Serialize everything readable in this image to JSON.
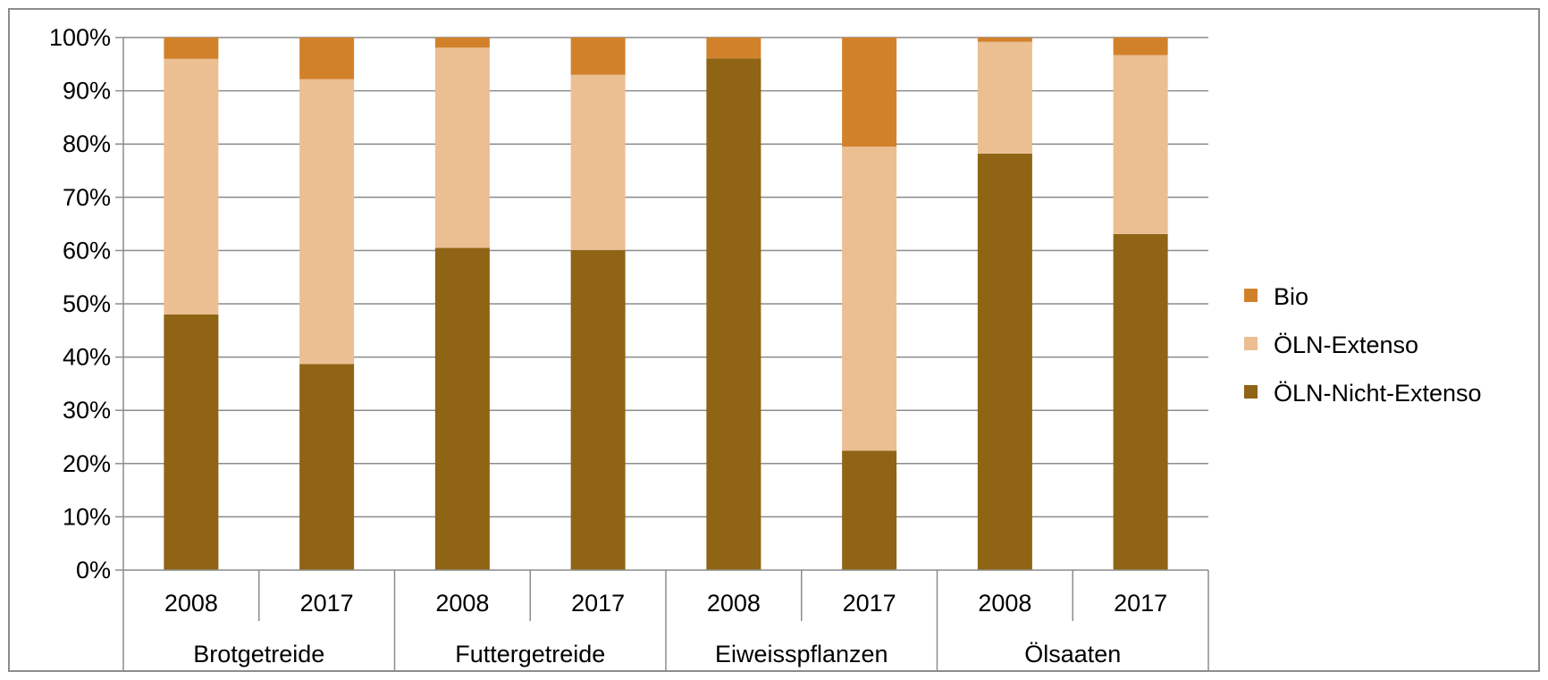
{
  "chart_data": {
    "type": "bar",
    "stacked": true,
    "percent_stacked": true,
    "x_year_labels": [
      "2008",
      "2017",
      "2008",
      "2017",
      "2008",
      "2017",
      "2008",
      "2017"
    ],
    "groups": [
      "Brotgetreide",
      "Futtergetreide",
      "Eiweisspflanzen",
      "Ölsaaten"
    ],
    "ylim": [
      0,
      100
    ],
    "y_ticks": [
      "0%",
      "10%",
      "20%",
      "30%",
      "40%",
      "50%",
      "60%",
      "70%",
      "80%",
      "90%",
      "100%"
    ],
    "grid": true,
    "legend_position": "right",
    "series": [
      {
        "name": "ÖLN-Nicht-Extenso",
        "color": "#8f6415",
        "values": [
          48,
          38.7,
          60.5,
          60.1,
          96.1,
          22.4,
          78.2,
          63.1
        ]
      },
      {
        "name": "ÖLN-Extenso",
        "color": "#ebbf92",
        "values": [
          48,
          53.5,
          37.6,
          32.9,
          0,
          57.1,
          21,
          33.6
        ]
      },
      {
        "name": "Bio",
        "color": "#d2812b",
        "values": [
          4,
          7.8,
          1.9,
          7,
          3.9,
          20.5,
          0.8,
          3.3
        ]
      }
    ],
    "legend_order": [
      "Bio",
      "ÖLN-Extenso",
      "ÖLN-Nicht-Extenso"
    ]
  }
}
